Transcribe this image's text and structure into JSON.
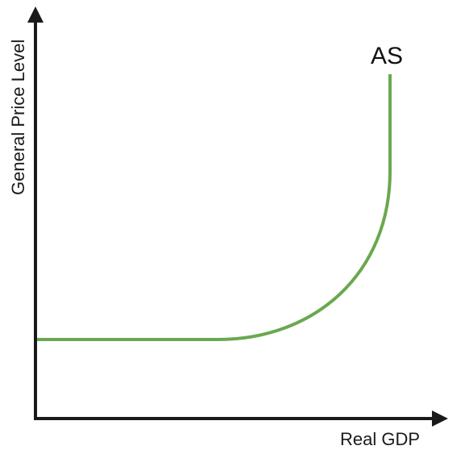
{
  "diagram": {
    "x_axis_label": "Real GDP",
    "y_axis_label": "General Price Level",
    "curve_label": "AS"
  },
  "colors": {
    "curve": "#6aa84f",
    "axis": "#1a1a1a",
    "background": "#ffffff"
  }
}
